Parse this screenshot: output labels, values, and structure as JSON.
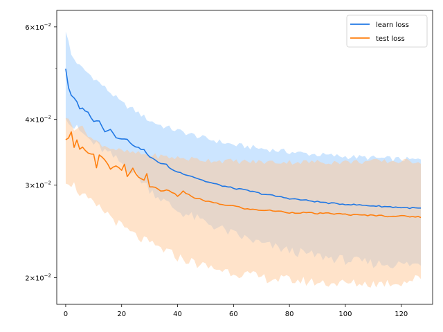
{
  "chart_data": {
    "type": "line",
    "title": "",
    "xlabel": "",
    "ylabel": "",
    "xscale": "linear",
    "yscale": "log",
    "xlim": [
      -3.2,
      131.2
    ],
    "ylim": [
      0.0178,
      0.0645
    ],
    "grid": false,
    "legend_position": "top-right",
    "x_ticks": [
      0,
      20,
      40,
      60,
      80,
      100,
      120
    ],
    "x_tick_labels": [
      "0",
      "20",
      "40",
      "60",
      "80",
      "100",
      "120"
    ],
    "y_ticks": [
      0.02,
      0.03,
      0.04,
      0.06
    ],
    "y_tick_labels": [
      {
        "base": "2×10",
        "exp": "−2"
      },
      {
        "base": "3×10",
        "exp": "−2"
      },
      {
        "base": "4×10",
        "exp": "−2"
      },
      {
        "base": "6×10",
        "exp": "−2"
      }
    ],
    "y_minor_ticks": [
      0.05
    ],
    "series": [
      {
        "name": "learn loss",
        "color": "#1f77e4",
        "band_color": "#aad4ff",
        "band_opacity": 0.6,
        "keypoints": [
          [
            0,
            0.05
          ],
          [
            1,
            0.046
          ],
          [
            2,
            0.0445
          ],
          [
            4,
            0.0432
          ],
          [
            5,
            0.0418
          ],
          [
            6,
            0.042
          ],
          [
            8,
            0.0412
          ],
          [
            10,
            0.0397
          ],
          [
            12,
            0.0397
          ],
          [
            14,
            0.038
          ],
          [
            16,
            0.0383
          ],
          [
            18,
            0.037
          ],
          [
            20,
            0.0368
          ],
          [
            22,
            0.0366
          ],
          [
            24,
            0.0358
          ],
          [
            26,
            0.0353
          ],
          [
            28,
            0.035
          ],
          [
            30,
            0.0339
          ],
          [
            32,
            0.0335
          ],
          [
            34,
            0.033
          ],
          [
            36,
            0.0328
          ],
          [
            38,
            0.0321
          ],
          [
            40,
            0.0318
          ],
          [
            45,
            0.0312
          ],
          [
            50,
            0.0305
          ],
          [
            55,
            0.03
          ],
          [
            60,
            0.0296
          ],
          [
            65,
            0.0293
          ],
          [
            70,
            0.0289
          ],
          [
            75,
            0.0286
          ],
          [
            80,
            0.0283
          ],
          [
            85,
            0.0281
          ],
          [
            90,
            0.0279
          ],
          [
            95,
            0.0277
          ],
          [
            100,
            0.0276
          ],
          [
            105,
            0.0275
          ],
          [
            110,
            0.0274
          ],
          [
            115,
            0.0273
          ],
          [
            120,
            0.0272
          ],
          [
            127,
            0.0271
          ]
        ],
        "upper": [
          [
            0,
            0.0592
          ],
          [
            2,
            0.053
          ],
          [
            5,
            0.0505
          ],
          [
            10,
            0.048
          ],
          [
            15,
            0.0455
          ],
          [
            20,
            0.043
          ],
          [
            25,
            0.0415
          ],
          [
            30,
            0.0398
          ],
          [
            35,
            0.0388
          ],
          [
            40,
            0.0381
          ],
          [
            50,
            0.0368
          ],
          [
            60,
            0.0358
          ],
          [
            70,
            0.0352
          ],
          [
            80,
            0.0347
          ],
          [
            90,
            0.0343
          ],
          [
            100,
            0.034
          ],
          [
            110,
            0.0338
          ],
          [
            120,
            0.0336
          ],
          [
            127,
            0.0335
          ]
        ],
        "lower": [
          [
            0,
            0.041
          ],
          [
            2,
            0.039
          ],
          [
            5,
            0.038
          ],
          [
            10,
            0.036
          ],
          [
            15,
            0.0345
          ],
          [
            20,
            0.033
          ],
          [
            25,
            0.0315
          ],
          [
            30,
            0.0295
          ],
          [
            35,
            0.028
          ],
          [
            40,
            0.0268
          ],
          [
            50,
            0.0255
          ],
          [
            60,
            0.0242
          ],
          [
            70,
            0.0232
          ],
          [
            80,
            0.0225
          ],
          [
            90,
            0.022
          ],
          [
            100,
            0.0216
          ],
          [
            110,
            0.0213
          ],
          [
            120,
            0.0212
          ],
          [
            127,
            0.0212
          ]
        ]
      },
      {
        "name": "test loss",
        "color": "#ff7f0e",
        "band_color": "#ffc896",
        "band_opacity": 0.5,
        "keypoints": [
          [
            0,
            0.0365
          ],
          [
            1,
            0.0368
          ],
          [
            2,
            0.038
          ],
          [
            3,
            0.0355
          ],
          [
            4,
            0.0365
          ],
          [
            5,
            0.0352
          ],
          [
            6,
            0.0355
          ],
          [
            8,
            0.0345
          ],
          [
            10,
            0.0343
          ],
          [
            11,
            0.0323
          ],
          [
            12,
            0.0342
          ],
          [
            14,
            0.0335
          ],
          [
            16,
            0.0322
          ],
          [
            18,
            0.0326
          ],
          [
            20,
            0.032
          ],
          [
            21,
            0.0328
          ],
          [
            22,
            0.0312
          ],
          [
            24,
            0.0323
          ],
          [
            26,
            0.031
          ],
          [
            28,
            0.0306
          ],
          [
            29,
            0.0316
          ],
          [
            30,
            0.0298
          ],
          [
            32,
            0.0297
          ],
          [
            34,
            0.0293
          ],
          [
            36,
            0.0293
          ],
          [
            38,
            0.0291
          ],
          [
            40,
            0.0286
          ],
          [
            42,
            0.0292
          ],
          [
            45,
            0.0285
          ],
          [
            50,
            0.028
          ],
          [
            55,
            0.0276
          ],
          [
            60,
            0.0274
          ],
          [
            65,
            0.027
          ],
          [
            70,
            0.0269
          ],
          [
            75,
            0.0268
          ],
          [
            80,
            0.0266
          ],
          [
            85,
            0.0266
          ],
          [
            90,
            0.0265
          ],
          [
            95,
            0.0265
          ],
          [
            100,
            0.0264
          ],
          [
            105,
            0.0263
          ],
          [
            110,
            0.0263
          ],
          [
            115,
            0.0262
          ],
          [
            120,
            0.0262
          ],
          [
            127,
            0.0261
          ]
        ],
        "upper": [
          [
            0,
            0.0405
          ],
          [
            3,
            0.0385
          ],
          [
            5,
            0.039
          ],
          [
            10,
            0.0365
          ],
          [
            15,
            0.0355
          ],
          [
            20,
            0.0348
          ],
          [
            30,
            0.0342
          ],
          [
            40,
            0.0338
          ],
          [
            50,
            0.0335
          ],
          [
            60,
            0.0333
          ],
          [
            70,
            0.0332
          ],
          [
            80,
            0.0332
          ],
          [
            90,
            0.0332
          ],
          [
            100,
            0.0332
          ],
          [
            110,
            0.0333
          ],
          [
            120,
            0.0333
          ],
          [
            127,
            0.0333
          ]
        ],
        "lower": [
          [
            0,
            0.0308
          ],
          [
            3,
            0.03
          ],
          [
            5,
            0.029
          ],
          [
            10,
            0.0275
          ],
          [
            15,
            0.0265
          ],
          [
            20,
            0.025
          ],
          [
            25,
            0.024
          ],
          [
            30,
            0.0232
          ],
          [
            35,
            0.0226
          ],
          [
            40,
            0.0219
          ],
          [
            50,
            0.021
          ],
          [
            60,
            0.0205
          ],
          [
            70,
            0.02
          ],
          [
            80,
            0.0198
          ],
          [
            90,
            0.0196
          ],
          [
            100,
            0.0195
          ],
          [
            110,
            0.0195
          ],
          [
            120,
            0.0196
          ],
          [
            127,
            0.02
          ]
        ]
      }
    ]
  }
}
